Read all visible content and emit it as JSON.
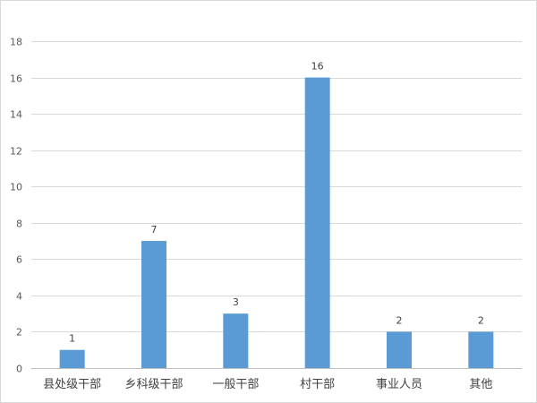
{
  "chart_data": {
    "type": "bar",
    "title": "",
    "xlabel": "",
    "ylabel": "",
    "categories": [
      "县处级干部",
      "乡科级干部",
      "一般干部",
      "村干部",
      "事业人员",
      "其他"
    ],
    "values": [
      1,
      7,
      3,
      16,
      2,
      2
    ],
    "ylim": [
      0,
      18
    ],
    "yticks": [
      0,
      2,
      4,
      6,
      8,
      10,
      12,
      14,
      16,
      18
    ],
    "grid": true,
    "data_labels": true,
    "legend": "none",
    "colors": {
      "bar": "#5b9bd5",
      "grid": "#d9d9d9",
      "axis": "#bfbfbf"
    }
  }
}
